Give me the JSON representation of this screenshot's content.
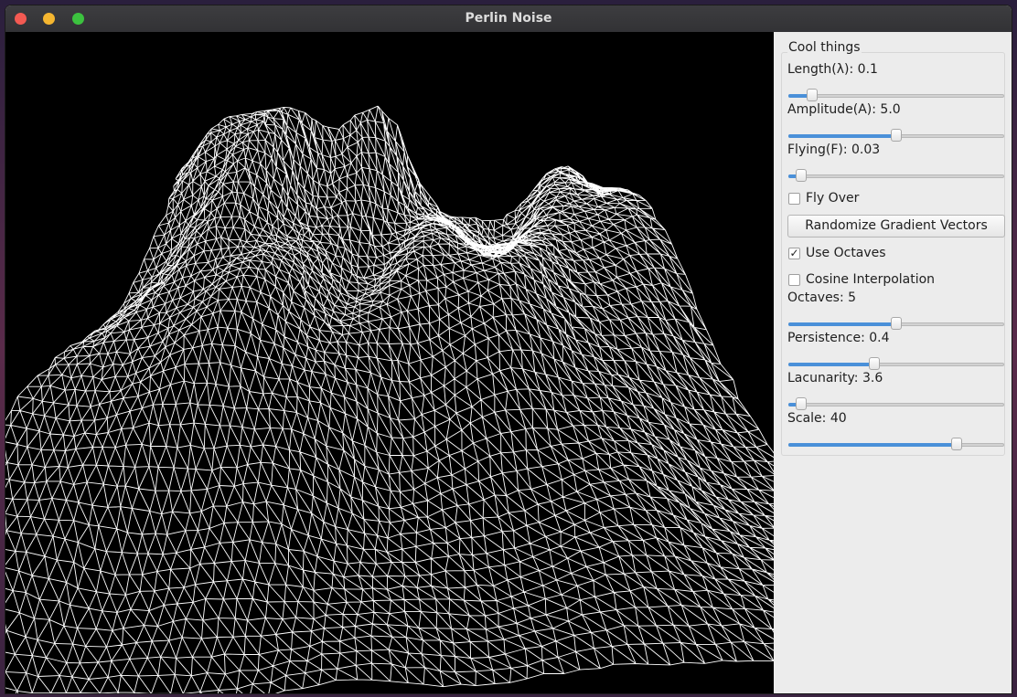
{
  "window": {
    "title": "Perlin Noise"
  },
  "panel": {
    "group_title": "Cool things",
    "length": {
      "label": "Length(λ): 0.1",
      "level": 0.11
    },
    "amplitude": {
      "label": "Amplitude(A): 5.0",
      "level": 0.5
    },
    "flying": {
      "label": "Flying(F): 0.03",
      "level": 0.06
    },
    "fly_over": {
      "label": "Fly Over",
      "checked": false
    },
    "randomize_label": "Randomize Gradient Vectors",
    "use_octaves": {
      "label": "Use Octaves",
      "checked": true,
      "mark": "✓"
    },
    "cosine": {
      "label": "Cosine Interpolation",
      "checked": false
    },
    "octaves": {
      "label": "Octaves: 5",
      "level": 0.5
    },
    "persistence": {
      "label": "Persistence: 0.4",
      "level": 0.4
    },
    "lacunarity": {
      "label": "Lacunarity: 3.6",
      "level": 0.06
    },
    "scale": {
      "label": "Scale: 40",
      "level": 0.78
    }
  },
  "colors": {
    "accent": "#4a90d9",
    "wire": "#ffffff",
    "background": "#000000"
  }
}
